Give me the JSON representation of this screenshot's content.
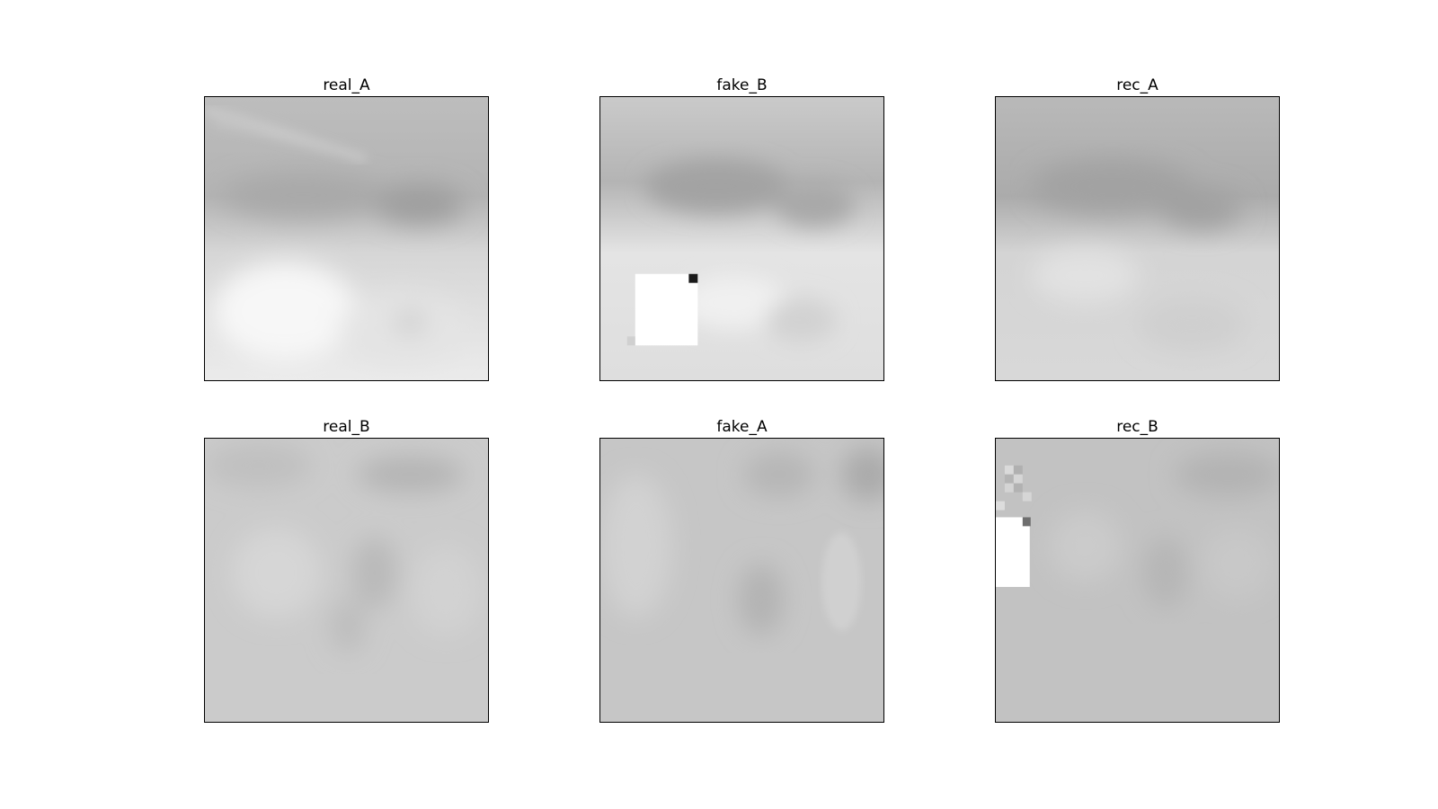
{
  "panels": {
    "real_A": {
      "title": "real_A"
    },
    "fake_B": {
      "title": "fake_B"
    },
    "rec_A": {
      "title": "rec_A"
    },
    "real_B": {
      "title": "real_B"
    },
    "fake_A": {
      "title": "fake_A"
    },
    "rec_B": {
      "title": "rec_B"
    }
  },
  "colors": {
    "border": "#000000",
    "background": "#ffffff"
  }
}
